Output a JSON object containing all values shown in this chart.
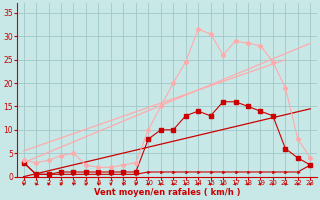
{
  "background_color": "#c8e8e8",
  "grid_color": "#a0c8c8",
  "line_color_dark": "#cc0000",
  "line_color_light": "#ff9999",
  "xlabel": "Vent moyen/en rafales ( km/h )",
  "xlim": [
    -0.5,
    23.5
  ],
  "ylim": [
    0,
    37
  ],
  "yticks": [
    0,
    5,
    10,
    15,
    20,
    25,
    30,
    35
  ],
  "xticks": [
    0,
    1,
    2,
    3,
    4,
    5,
    6,
    7,
    8,
    9,
    10,
    11,
    12,
    13,
    14,
    15,
    16,
    17,
    18,
    19,
    20,
    21,
    22,
    23
  ],
  "series": [
    {
      "x": [
        0,
        23
      ],
      "y": [
        0,
        14.5
      ],
      "color": "#cc0000",
      "marker": "None",
      "lw": 0.9,
      "ms": 0
    },
    {
      "x": [
        0,
        1,
        2,
        3,
        4,
        5,
        6,
        7,
        8,
        9,
        10,
        11,
        12,
        13,
        14,
        15,
        16,
        17,
        18,
        19,
        20,
        21,
        22,
        23
      ],
      "y": [
        3,
        0.5,
        0.5,
        1,
        1,
        1,
        1,
        1,
        1,
        1,
        8,
        10,
        10,
        13,
        14,
        13,
        16,
        16,
        15,
        14,
        13,
        6,
        4,
        2.5
      ],
      "color": "#cc0000",
      "marker": "s",
      "lw": 0.8,
      "ms": 2.2
    },
    {
      "x": [
        0,
        1,
        2,
        3,
        4,
        5,
        6,
        7,
        8,
        9,
        10,
        11,
        12,
        13,
        14,
        15,
        16,
        17,
        18,
        19,
        20,
        21,
        22,
        23
      ],
      "y": [
        3,
        0.5,
        0.5,
        0.5,
        0.5,
        0.5,
        0.5,
        0.5,
        0.5,
        0.5,
        1,
        1,
        1,
        1,
        1,
        1,
        1,
        1,
        1,
        1,
        1,
        1,
        1,
        2.5
      ],
      "color": "#cc0000",
      "marker": "4",
      "lw": 0.8,
      "ms": 2.5
    },
    {
      "x": [
        0,
        21
      ],
      "y": [
        5.5,
        25
      ],
      "color": "#ffaaaa",
      "marker": "None",
      "lw": 0.9,
      "ms": 0
    },
    {
      "x": [
        0,
        23
      ],
      "y": [
        3,
        28.5
      ],
      "color": "#ffaaaa",
      "marker": "None",
      "lw": 0.9,
      "ms": 0
    },
    {
      "x": [
        0,
        1,
        2,
        3,
        4,
        5,
        6,
        7,
        8,
        9,
        10,
        11,
        12,
        13,
        14,
        15,
        16,
        17,
        18,
        19,
        20,
        21,
        22,
        23
      ],
      "y": [
        3.5,
        3,
        3.5,
        4.5,
        5,
        2.5,
        2,
        2,
        2.5,
        3,
        10,
        15,
        20,
        24.5,
        31.5,
        30.5,
        26,
        29,
        28.5,
        28,
        24.5,
        19,
        8,
        4
      ],
      "color": "#ffaaaa",
      "marker": "D",
      "lw": 0.8,
      "ms": 2.2
    }
  ]
}
